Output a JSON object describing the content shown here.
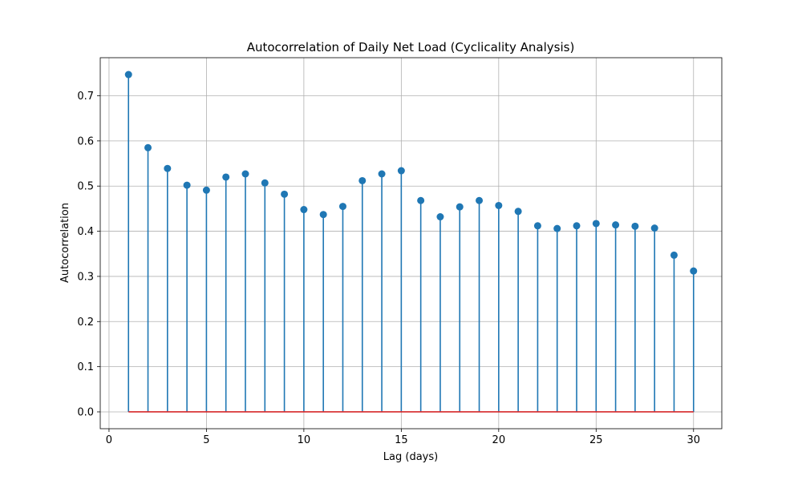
{
  "chart_data": {
    "type": "stem",
    "title": "Autocorrelation of Daily Net Load (Cyclicality Analysis)",
    "xlabel": "Lag (days)",
    "ylabel": "Autocorrelation",
    "x": [
      1,
      2,
      3,
      4,
      5,
      6,
      7,
      8,
      9,
      10,
      11,
      12,
      13,
      14,
      15,
      16,
      17,
      18,
      19,
      20,
      21,
      22,
      23,
      24,
      25,
      26,
      27,
      28,
      29,
      30
    ],
    "values": [
      0.747,
      0.585,
      0.539,
      0.502,
      0.491,
      0.52,
      0.527,
      0.507,
      0.482,
      0.448,
      0.437,
      0.455,
      0.512,
      0.527,
      0.534,
      0.468,
      0.432,
      0.454,
      0.468,
      0.457,
      0.444,
      0.412,
      0.406,
      0.412,
      0.417,
      0.414,
      0.411,
      0.407,
      0.347,
      0.312
    ],
    "xlim": [
      -0.45,
      31.45
    ],
    "ylim": [
      -0.0373,
      0.7843
    ],
    "xticks": [
      0,
      5,
      10,
      15,
      20,
      25,
      30
    ],
    "xtick_labels": [
      "0",
      "5",
      "10",
      "15",
      "20",
      "25",
      "30"
    ],
    "yticks": [
      0.0,
      0.1,
      0.2,
      0.3,
      0.4,
      0.5,
      0.6,
      0.7
    ],
    "ytick_labels": [
      "0.0",
      "0.1",
      "0.2",
      "0.3",
      "0.4",
      "0.5",
      "0.6",
      "0.7"
    ],
    "grid": true,
    "baseline": 0,
    "colors": {
      "marker": "#1f77b4",
      "stem": "#1f77b4",
      "baseline": "#d62728",
      "grid": "#b0b0b0",
      "axes": "#000000"
    }
  }
}
